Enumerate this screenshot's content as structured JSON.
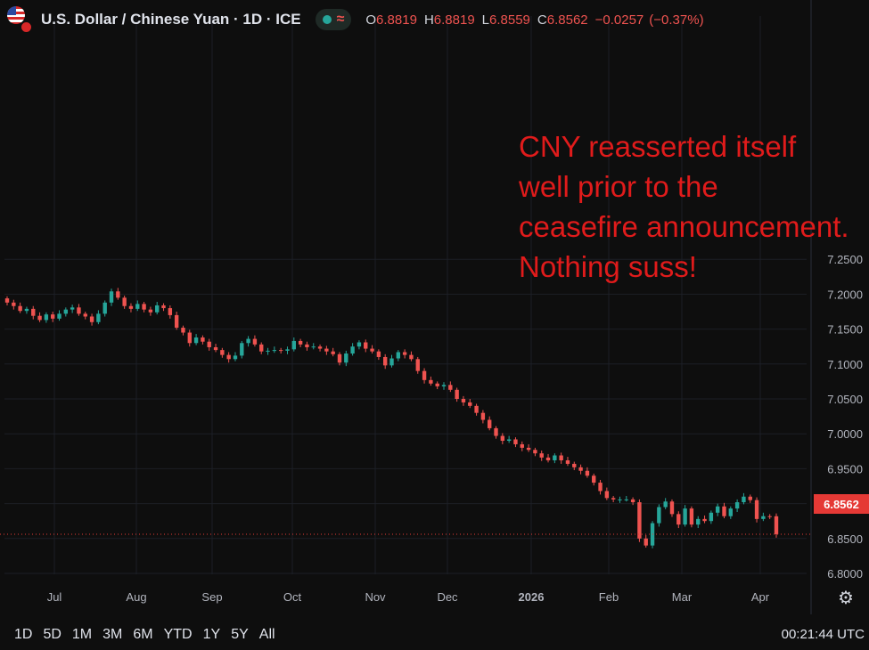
{
  "header": {
    "symbol": "U.S. Dollar / Chinese Yuan · 1D · ICE",
    "ohlc": [
      {
        "label": "O",
        "value": "6.8819"
      },
      {
        "label": "H",
        "value": "6.8819"
      },
      {
        "label": "L",
        "value": "6.8559"
      },
      {
        "label": "C",
        "value": "6.8562"
      }
    ],
    "change": "−0.0257",
    "change_pct": "(−0.37%)"
  },
  "annotation": [
    "CNY reasserted itself",
    "well prior to the",
    "ceasefire announcement.",
    "Nothing suss!"
  ],
  "last_price": "6.8562",
  "footer": {
    "ranges": [
      "1D",
      "5D",
      "1M",
      "3M",
      "6M",
      "YTD",
      "1Y",
      "5Y",
      "All"
    ],
    "clock": "00:21:44 UTC"
  },
  "colors": {
    "up": "#26a69a",
    "down": "#ef5350",
    "annotation": "#e01b1b",
    "price_tag": "#e53935"
  },
  "icons": {
    "settings": "gear-icon",
    "status": "dot-icon",
    "wave": "wave-icon"
  },
  "chart_data": {
    "type": "candlestick",
    "y_ticks": [
      "7.2500",
      "7.2000",
      "7.1500",
      "7.1000",
      "7.0500",
      "7.0000",
      "6.9500",
      "6.9000",
      "6.8500",
      "6.8000"
    ],
    "ylim": [
      6.8,
      7.25
    ],
    "x_ticks": [
      "Jul",
      "Aug",
      "Sep",
      "Oct",
      "Nov",
      "Dec",
      "2026",
      "Feb",
      "Mar",
      "Apr"
    ],
    "last_price": 6.8562,
    "series": [
      {
        "name": "Jul-1",
        "close": 7.188
      },
      {
        "name": "Jul-2",
        "close": 7.183
      },
      {
        "name": "Jul-3",
        "close": 7.176
      },
      {
        "name": "Jul-4",
        "close": 7.179
      },
      {
        "name": "Jul-5",
        "close": 7.169
      },
      {
        "name": "Jul-6",
        "close": 7.163
      },
      {
        "name": "Jul-7",
        "close": 7.171
      },
      {
        "name": "Jul-8",
        "close": 7.165
      },
      {
        "name": "Jul-9",
        "close": 7.172
      },
      {
        "name": "Jul-10",
        "close": 7.178
      },
      {
        "name": "Jul-11",
        "close": 7.181
      },
      {
        "name": "Jul-12",
        "close": 7.172
      },
      {
        "name": "Jul-13",
        "close": 7.168
      },
      {
        "name": "Jul-14",
        "close": 7.16
      },
      {
        "name": "Jul-15",
        "close": 7.172
      },
      {
        "name": "Jul-16",
        "close": 7.188
      },
      {
        "name": "Jul-17",
        "close": 7.204
      },
      {
        "name": "Jul-18",
        "close": 7.195
      },
      {
        "name": "Aug-1",
        "close": 7.183
      },
      {
        "name": "Aug-2",
        "close": 7.179
      },
      {
        "name": "Aug-3",
        "close": 7.186
      },
      {
        "name": "Aug-4",
        "close": 7.178
      },
      {
        "name": "Aug-5",
        "close": 7.174
      },
      {
        "name": "Aug-6",
        "close": 7.184
      },
      {
        "name": "Aug-7",
        "close": 7.18
      },
      {
        "name": "Aug-8",
        "close": 7.17
      },
      {
        "name": "Aug-9",
        "close": 7.152
      },
      {
        "name": "Aug-10",
        "close": 7.145
      },
      {
        "name": "Aug-11",
        "close": 7.13
      },
      {
        "name": "Aug-12",
        "close": 7.138
      },
      {
        "name": "Aug-13",
        "close": 7.132
      },
      {
        "name": "Aug-14",
        "close": 7.124
      },
      {
        "name": "Aug-15",
        "close": 7.12
      },
      {
        "name": "Aug-16",
        "close": 7.113
      },
      {
        "name": "Aug-17",
        "close": 7.107
      },
      {
        "name": "Aug-18",
        "close": 7.112
      },
      {
        "name": "Sep-1",
        "close": 7.13
      },
      {
        "name": "Sep-2",
        "close": 7.136
      },
      {
        "name": "Sep-3",
        "close": 7.128
      },
      {
        "name": "Sep-4",
        "close": 7.118
      },
      {
        "name": "Sep-5",
        "close": 7.119
      },
      {
        "name": "Sep-6",
        "close": 7.12
      },
      {
        "name": "Sep-7",
        "close": 7.119
      },
      {
        "name": "Sep-8",
        "close": 7.121
      },
      {
        "name": "Sep-9",
        "close": 7.133
      },
      {
        "name": "Sep-10",
        "close": 7.128
      },
      {
        "name": "Sep-11",
        "close": 7.124
      },
      {
        "name": "Sep-12",
        "close": 7.125
      },
      {
        "name": "Sep-13",
        "close": 7.122
      },
      {
        "name": "Sep-14",
        "close": 7.118
      },
      {
        "name": "Sep-15",
        "close": 7.114
      },
      {
        "name": "Oct-1",
        "close": 7.102
      },
      {
        "name": "Oct-2",
        "close": 7.115
      },
      {
        "name": "Oct-3",
        "close": 7.125
      },
      {
        "name": "Oct-4",
        "close": 7.131
      },
      {
        "name": "Oct-5",
        "close": 7.122
      },
      {
        "name": "Oct-6",
        "close": 7.118
      },
      {
        "name": "Oct-7",
        "close": 7.11
      },
      {
        "name": "Oct-8",
        "close": 7.098
      },
      {
        "name": "Oct-9",
        "close": 7.108
      },
      {
        "name": "Oct-10",
        "close": 7.117
      },
      {
        "name": "Oct-11",
        "close": 7.113
      },
      {
        "name": "Oct-12",
        "close": 7.107
      },
      {
        "name": "Nov-1",
        "close": 7.09
      },
      {
        "name": "Nov-2",
        "close": 7.077
      },
      {
        "name": "Nov-3",
        "close": 7.072
      },
      {
        "name": "Nov-4",
        "close": 7.068
      },
      {
        "name": "Nov-5",
        "close": 7.07
      },
      {
        "name": "Nov-6",
        "close": 7.063
      },
      {
        "name": "Nov-7",
        "close": 7.05
      },
      {
        "name": "Nov-8",
        "close": 7.045
      },
      {
        "name": "Nov-9",
        "close": 7.04
      },
      {
        "name": "Nov-10",
        "close": 7.03
      },
      {
        "name": "Nov-11",
        "close": 7.02
      },
      {
        "name": "Nov-12",
        "close": 7.008
      },
      {
        "name": "Dec-1",
        "close": 6.997
      },
      {
        "name": "Dec-2",
        "close": 6.99
      },
      {
        "name": "Dec-3",
        "close": 6.992
      },
      {
        "name": "Dec-4",
        "close": 6.985
      },
      {
        "name": "Dec-5",
        "close": 6.98
      },
      {
        "name": "Dec-6",
        "close": 6.977
      },
      {
        "name": "Dec-7",
        "close": 6.972
      },
      {
        "name": "Dec-8",
        "close": 6.966
      },
      {
        "name": "Dec-9",
        "close": 6.962
      },
      {
        "name": "Dec-10",
        "close": 6.969
      },
      {
        "name": "Dec-11",
        "close": 6.962
      },
      {
        "name": "Dec-12",
        "close": 6.957
      },
      {
        "name": "Jan-1",
        "close": 6.952
      },
      {
        "name": "Jan-2",
        "close": 6.947
      },
      {
        "name": "Jan-3",
        "close": 6.94
      },
      {
        "name": "Jan-4",
        "close": 6.93
      },
      {
        "name": "Jan-5",
        "close": 6.918
      },
      {
        "name": "Jan-6",
        "close": 6.908
      },
      {
        "name": "Jan-7",
        "close": 6.906
      },
      {
        "name": "Jan-8",
        "close": 6.906
      },
      {
        "name": "Jan-9",
        "close": 6.906
      },
      {
        "name": "Feb-1",
        "close": 6.902
      },
      {
        "name": "Feb-2",
        "close": 6.85
      },
      {
        "name": "Feb-3",
        "close": 6.84
      },
      {
        "name": "Feb-4",
        "close": 6.872
      },
      {
        "name": "Feb-5",
        "close": 6.895
      },
      {
        "name": "Feb-6",
        "close": 6.903
      },
      {
        "name": "Feb-7",
        "close": 6.885
      },
      {
        "name": "Feb-8",
        "close": 6.87
      },
      {
        "name": "Feb-9",
        "close": 6.893
      },
      {
        "name": "Mar-1",
        "close": 6.87
      },
      {
        "name": "Mar-2",
        "close": 6.878
      },
      {
        "name": "Mar-3",
        "close": 6.875
      },
      {
        "name": "Mar-4",
        "close": 6.887
      },
      {
        "name": "Mar-5",
        "close": 6.896
      },
      {
        "name": "Mar-6",
        "close": 6.882
      },
      {
        "name": "Mar-7",
        "close": 6.893
      },
      {
        "name": "Mar-8",
        "close": 6.902
      },
      {
        "name": "Mar-9",
        "close": 6.91
      },
      {
        "name": "Mar-10",
        "close": 6.905
      },
      {
        "name": "Mar-11",
        "close": 6.878
      },
      {
        "name": "Mar-12",
        "close": 6.882
      },
      {
        "name": "Apr-1",
        "close": 6.8819
      },
      {
        "name": "Apr-2",
        "close": 6.8562
      }
    ]
  }
}
